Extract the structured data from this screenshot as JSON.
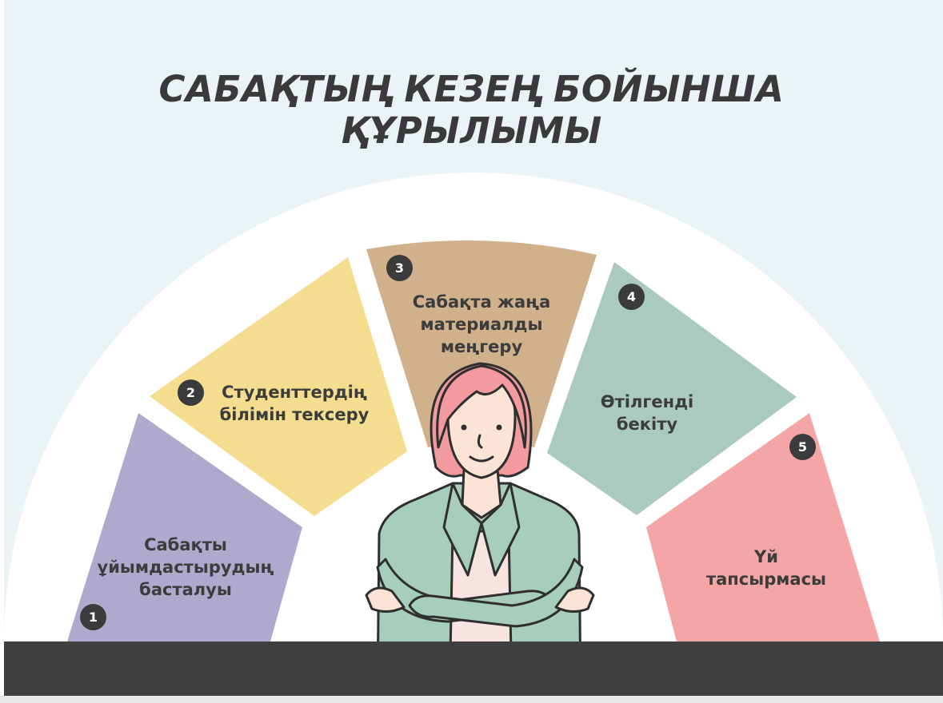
{
  "title": {
    "line1": "САБАҚТЫҢ КЕЗЕҢ БОЙЫНША",
    "line2": "ҚҰРЫЛЫМЫ"
  },
  "stages": [
    {
      "number": "1",
      "lines": [
        "Сабақты",
        "ұйымдастырудың",
        "басталуы"
      ],
      "color": "#b0a9ce"
    },
    {
      "number": "2",
      "lines": [
        "Студенттердің",
        "білімін тексеру"
      ],
      "color": "#f4dd8e"
    },
    {
      "number": "3",
      "lines": [
        "Сабақта жаңа",
        "материалды",
        "меңгеру"
      ],
      "color": "#d1b08c"
    },
    {
      "number": "4",
      "lines": [
        "Өтілгенді",
        "бекіту"
      ],
      "color": "#a9cabd"
    },
    {
      "number": "5",
      "lines": [
        "Үй",
        "тапсырмасы"
      ],
      "color": "#f4a5a5"
    }
  ],
  "figure": {
    "hair_color": "#f29a9e",
    "jacket_color": "#a7cdbb",
    "skin_color": "#fbe3d6"
  }
}
